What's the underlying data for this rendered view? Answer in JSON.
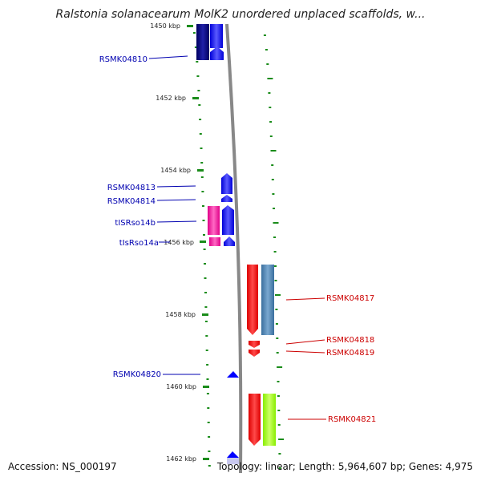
{
  "title": "Ralstonia solanacearum MolK2 unordered unplaced scaffolds, w...",
  "accession": "Accession: NS_000197",
  "summary": "Topology: linear; Length: 5,964,607 bp; Genes: 4,975",
  "colors": {
    "tick_green": "#1a8c1a",
    "left_label": "#0000b0",
    "right_label": "#cc0000",
    "blue_gene": "#0000ff",
    "dark_blue_gene": "#000080",
    "magenta_gene": "#ff1aa0",
    "red_gene": "#ff0000",
    "steel_gene": "#4682b4",
    "lime_gene": "#99ff00"
  },
  "scale": {
    "labels": [
      "1450 kbp",
      "1452 kbp",
      "1454 kbp",
      "1456 kbp",
      "1458 kbp",
      "1460 kbp",
      "1462 kbp"
    ]
  },
  "left_genes": [
    "RSMK04810",
    "RSMK04813",
    "RSMK04814",
    "tISRso14b",
    "tIsRso14a",
    "RSMK04820"
  ],
  "right_genes": [
    "RSMK04817",
    "RSMK04818",
    "RSMK04819",
    "RSMK04821"
  ]
}
